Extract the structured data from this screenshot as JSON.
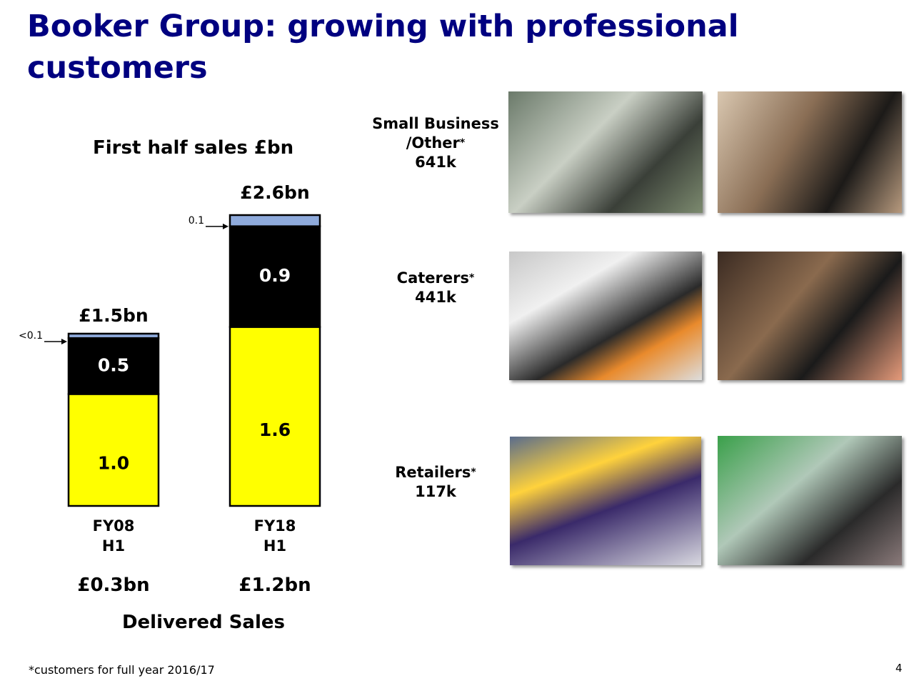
{
  "header": {
    "title": "Booker Group: growing with professional customers"
  },
  "chart_data": {
    "type": "stacked_bar",
    "title": "First half sales £bn",
    "categories": [
      "FY08\nH1",
      "FY18\nH1"
    ],
    "series": [
      {
        "color": "#ffff00",
        "values": [
          1.0,
          1.6
        ],
        "value_labels": [
          "1.0",
          "1.6"
        ]
      },
      {
        "color": "#000000",
        "values": [
          0.5,
          0.9
        ],
        "value_labels": [
          "0.5",
          "0.9"
        ]
      },
      {
        "color": "#8eaadb",
        "values": [
          0.04,
          0.1
        ],
        "value_labels": [
          "<0.1",
          "0.1"
        ]
      }
    ],
    "totals": [
      {
        "value": 1.5,
        "label": "£1.5bn"
      },
      {
        "value": 2.6,
        "label": "£2.6bn"
      }
    ],
    "ylim": [
      0,
      2.6
    ],
    "delivered_sales": [
      "£0.3bn",
      "£1.2bn"
    ],
    "delivered_label": "Delivered Sales"
  },
  "customers": [
    {
      "label": "Small Business\n/Other",
      "mark": "*",
      "count": "641k"
    },
    {
      "label": "Caterers",
      "mark": "*",
      "count": "441k"
    },
    {
      "label": "Retailers",
      "mark": "*",
      "count": "117k"
    }
  ],
  "footnote": "*customers for full year 2016/17",
  "page_number": "4"
}
